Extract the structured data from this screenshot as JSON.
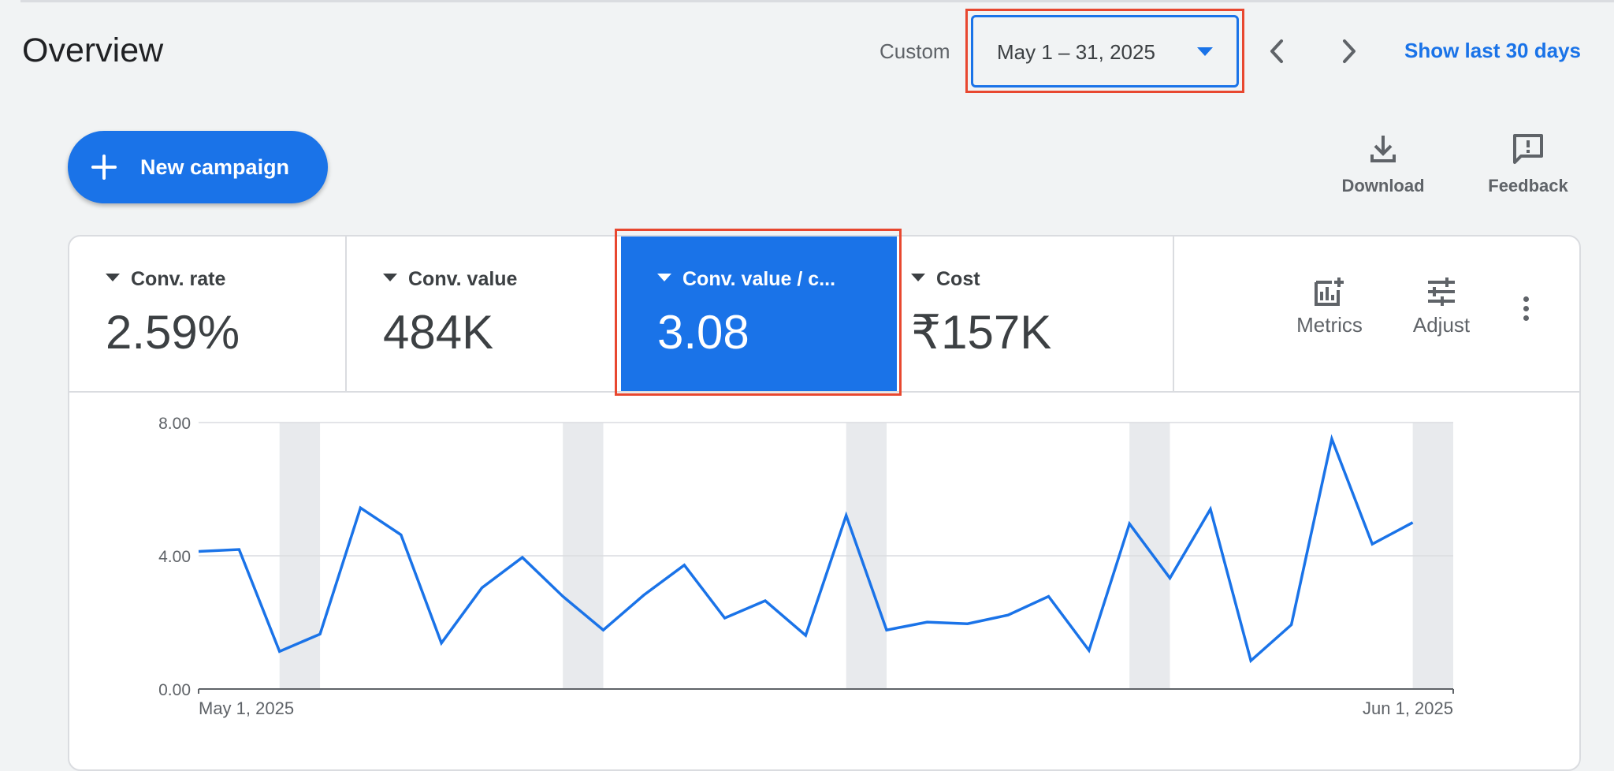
{
  "header": {
    "title": "Overview",
    "date_mode": "Custom",
    "date_range": "May 1 – 31, 2025",
    "prev_icon": "chevron-left-icon",
    "next_icon": "chevron-right-icon",
    "show_last_label": "Show last 30 days"
  },
  "toolbar": {
    "new_campaign_label": "New campaign",
    "new_campaign_icon": "plus-icon",
    "download_label": "Download",
    "download_icon": "download-icon",
    "feedback_label": "Feedback",
    "feedback_icon": "feedback-icon"
  },
  "metrics": [
    {
      "label": "Conv. rate",
      "value": "2.59%",
      "selected": false
    },
    {
      "label": "Conv. value",
      "value": "484K",
      "selected": false
    },
    {
      "label": "Conv. value / c...",
      "value": "3.08",
      "selected": true
    },
    {
      "label": "Cost",
      "value": "₹157K",
      "selected": false
    }
  ],
  "controls": {
    "metrics_label": "Metrics",
    "metrics_icon": "add-chart-icon",
    "adjust_label": "Adjust",
    "adjust_icon": "tune-icon",
    "more_icon": "more-vert-icon"
  },
  "colors": {
    "accent": "#1a73e8",
    "highlight": "#e8472f",
    "weekend_band": "#e8eaed"
  },
  "chart_data": {
    "type": "line",
    "x_start_label": "May 1, 2025",
    "x_end_label": "Jun 1, 2025",
    "y_ticks": [
      "0.00",
      "4.00",
      "8.00"
    ],
    "ylim": [
      0,
      8
    ],
    "grid": true,
    "weekend_band_dates": [
      "May 3–4",
      "May 10–11",
      "May 17–18",
      "May 24–25",
      "May 31–Jun 1"
    ],
    "series": [
      {
        "x": [
          "May 1",
          "May 2",
          "May 3",
          "May 4",
          "May 5",
          "May 6",
          "May 7",
          "May 8",
          "May 9",
          "May 10",
          "May 11",
          "May 12",
          "May 13",
          "May 14",
          "May 15",
          "May 16",
          "May 17",
          "May 18",
          "May 19",
          "May 20",
          "May 21",
          "May 22",
          "May 23",
          "May 24",
          "May 25",
          "May 26",
          "May 27",
          "May 28",
          "May 29",
          "May 30",
          "May 31",
          "Jun 1"
        ],
        "values": [
          4.13,
          4.19,
          1.13,
          1.65,
          5.44,
          4.63,
          1.38,
          3.04,
          3.95,
          2.78,
          1.77,
          2.82,
          3.72,
          2.13,
          2.65,
          1.61,
          5.21,
          1.77,
          2.01,
          1.96,
          2.22,
          2.78,
          1.16,
          4.96,
          3.33,
          5.4,
          0.85,
          1.93,
          7.51,
          4.35,
          5.0,
          null
        ]
      }
    ]
  }
}
